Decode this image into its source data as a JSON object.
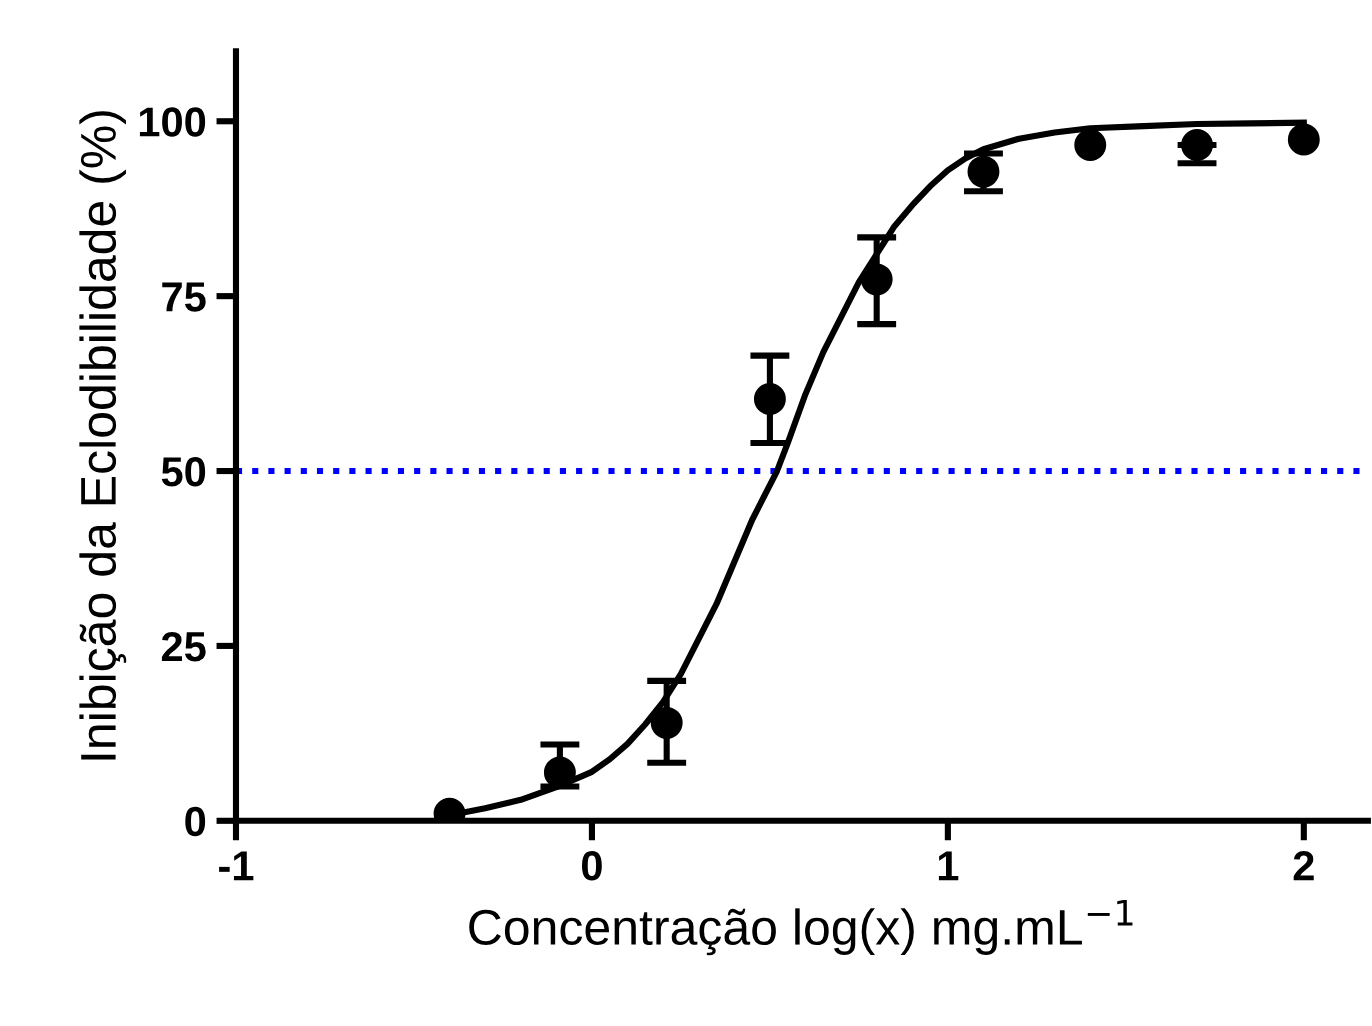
{
  "chart_data": {
    "type": "scatter",
    "xlabel": "Concentração log(x) mg.mL$^{−1}$",
    "ylabel": "Inibição da Eclodibilidade (%)",
    "xlim": [
      -1,
      2.18
    ],
    "xticks": [
      -1,
      0,
      1,
      2
    ],
    "ylim": [
      0,
      110
    ],
    "yticks": [
      0,
      25,
      50,
      75,
      100
    ],
    "grid": false,
    "legend": false,
    "marker": "circle",
    "series": [
      {
        "color": "#000000",
        "x": [
          -0.4,
          -0.09,
          0.21,
          0.5,
          0.8,
          1.1,
          1.4,
          1.7,
          2.0
        ],
        "values": [
          1,
          6.9,
          14,
          60.3,
          77.4,
          92.8,
          96.6,
          96.6,
          97.4
        ],
        "errors": [
          null,
          [
            4.9,
            10.9
          ],
          [
            8.3,
            20
          ],
          [
            54,
            66.5
          ],
          [
            71,
            83.4
          ],
          [
            90,
            95.4
          ],
          null,
          [
            94,
            96.6
          ],
          null
        ]
      },
      {
        "type": "line",
        "color": "#000000",
        "marker": "none",
        "line_style": "solid",
        "x": [
          -0.4,
          -0.3,
          -0.2,
          -0.1,
          0,
          0.05,
          0.1,
          0.15,
          0.2,
          0.25,
          0.3,
          0.35,
          0.4,
          0.45,
          0.52,
          0.55,
          0.6,
          0.65,
          0.7,
          0.75,
          0.8,
          0.85,
          0.9,
          0.95,
          1.0,
          1.05,
          1.1,
          1.2,
          1.3,
          1.4,
          1.55,
          1.7,
          1.85,
          2.0
        ],
        "values": [
          0.8,
          1.8,
          3,
          4.8,
          7,
          8.8,
          11,
          13.8,
          17,
          21,
          26,
          31,
          37,
          43,
          50,
          54,
          61,
          67,
          72,
          77,
          81,
          85,
          88,
          90.7,
          93,
          94.7,
          96,
          97.5,
          98.4,
          99,
          99.3,
          99.6,
          99.7,
          99.8
        ]
      }
    ],
    "ref_lines": [
      {
        "axis": "y",
        "value": 50,
        "color": "#0000ff",
        "line_style": "dotted"
      }
    ]
  }
}
